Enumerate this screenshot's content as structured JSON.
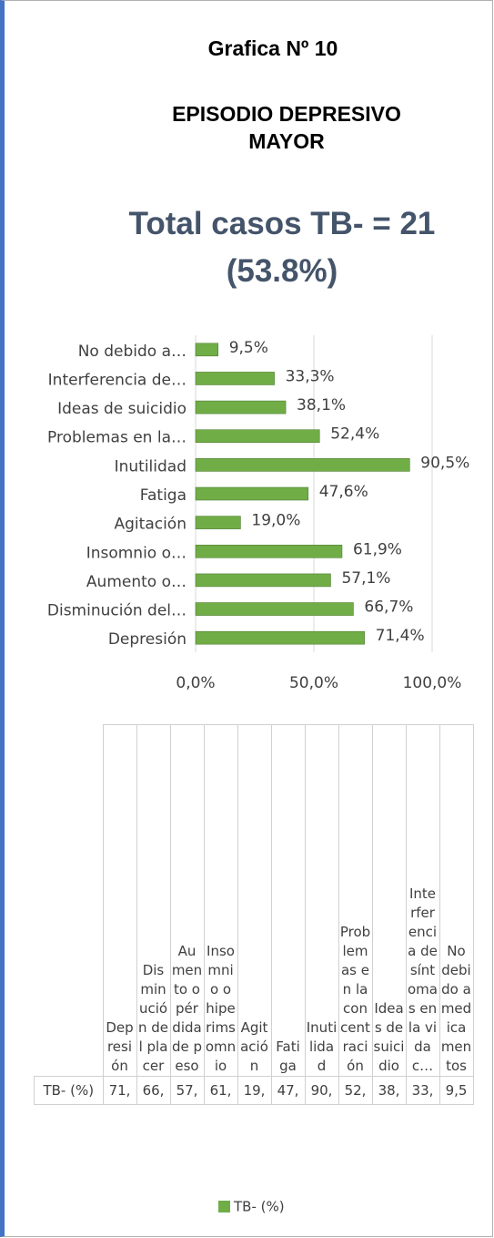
{
  "chart_data": {
    "type": "hbar",
    "title": "Grafica Nº 10",
    "subtitle": "EPISODIO DEPRESIVO MAYOR",
    "annotation": "Total casos TB- = 21 (53.8%)",
    "categories": [
      "Depresión",
      "Disminución del…",
      "Aumento o…",
      "Insomnio o…",
      "Agitación",
      "Fatiga",
      "Inutilidad",
      "Problemas en la…",
      "Ideas de suicidio",
      "Interferencia de…",
      "No debido a…"
    ],
    "series": [
      {
        "name": "TB- (%)",
        "color": "#70ad47",
        "values": [
          71.4,
          66.7,
          57.1,
          61.9,
          19.0,
          47.6,
          90.5,
          52.4,
          38.1,
          33.3,
          9.5
        ],
        "value_labels": [
          "71,4%",
          "66,7%",
          "57,1%",
          "61,9%",
          "19,0%",
          "47,6%",
          "90,5%",
          "52,4%",
          "38,1%",
          "33,3%",
          "9,5%"
        ]
      }
    ],
    "xlim": [
      0,
      100
    ],
    "xticks": [
      {
        "value": 0,
        "label": "0,0%"
      },
      {
        "value": 50,
        "label": "50,0%"
      },
      {
        "value": 100,
        "label": "100,0%"
      }
    ],
    "grid": true
  },
  "table": {
    "columns": [
      "Depresión",
      "Disminución del placer",
      "Aumento o pérdida de peso",
      "Insomnio o hiperimsomnio",
      "Agitación",
      "Fatiga",
      "Inutilidad",
      "Problemas en la concentración",
      "Ideas de suicidio",
      "Interferencia de síntomas en la vida c…",
      "No debido a medicamentos"
    ],
    "row": {
      "label": "TB- (%)",
      "cells": [
        "71,",
        "66,",
        "57,",
        "61,",
        "19,",
        "47,",
        "90,",
        "52,",
        "38,",
        "33,",
        "9,5"
      ]
    }
  }
}
